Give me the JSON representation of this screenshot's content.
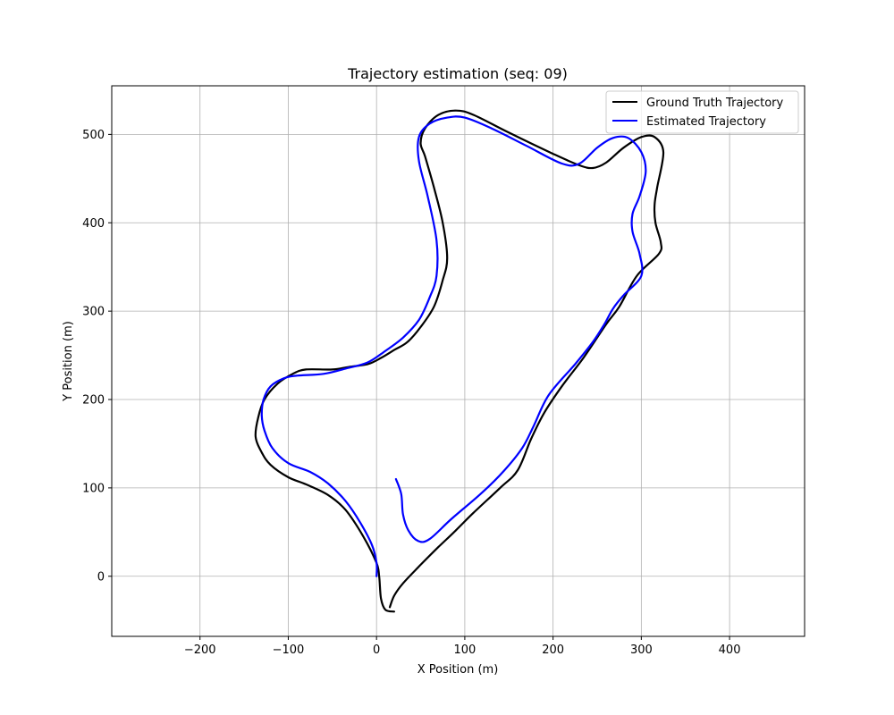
{
  "chart_data": {
    "type": "line",
    "title": "Trajectory estimation (seq: 09)",
    "xlabel": "X Position (m)",
    "ylabel": "Y Position (m)",
    "xlim": [
      -300,
      485
    ],
    "ylim": [
      -68,
      555
    ],
    "xticks": [
      -200,
      -100,
      0,
      100,
      200,
      300,
      400
    ],
    "yticks": [
      0,
      100,
      200,
      300,
      400,
      500
    ],
    "grid": true,
    "legend_position": "top-right",
    "series": [
      {
        "name": "Ground Truth Trajectory",
        "color": "#000000",
        "points": [
          [
            20,
            -40
          ],
          [
            10,
            -38
          ],
          [
            5,
            -25
          ],
          [
            3,
            0
          ],
          [
            0,
            15
          ],
          [
            -15,
            45
          ],
          [
            -35,
            75
          ],
          [
            -55,
            92
          ],
          [
            -80,
            104
          ],
          [
            -100,
            112
          ],
          [
            -120,
            126
          ],
          [
            -130,
            140
          ],
          [
            -137,
            158
          ],
          [
            -134,
            180
          ],
          [
            -127,
            200
          ],
          [
            -112,
            218
          ],
          [
            -95,
            229
          ],
          [
            -80,
            234
          ],
          [
            -50,
            234
          ],
          [
            -30,
            237
          ],
          [
            -10,
            240
          ],
          [
            5,
            247
          ],
          [
            20,
            256
          ],
          [
            35,
            265
          ],
          [
            50,
            282
          ],
          [
            65,
            305
          ],
          [
            75,
            335
          ],
          [
            80,
            360
          ],
          [
            75,
            400
          ],
          [
            65,
            440
          ],
          [
            55,
            475
          ],
          [
            50,
            490
          ],
          [
            55,
            507
          ],
          [
            70,
            522
          ],
          [
            90,
            527
          ],
          [
            110,
            522
          ],
          [
            150,
            502
          ],
          [
            200,
            478
          ],
          [
            230,
            465
          ],
          [
            245,
            462
          ],
          [
            260,
            468
          ],
          [
            280,
            485
          ],
          [
            300,
            497
          ],
          [
            315,
            497
          ],
          [
            325,
            480
          ],
          [
            318,
            440
          ],
          [
            315,
            420
          ],
          [
            316,
            400
          ],
          [
            322,
            378
          ],
          [
            320,
            365
          ],
          [
            295,
            340
          ],
          [
            275,
            305
          ],
          [
            260,
            285
          ],
          [
            235,
            248
          ],
          [
            210,
            215
          ],
          [
            190,
            185
          ],
          [
            175,
            155
          ],
          [
            160,
            120
          ],
          [
            140,
            100
          ],
          [
            110,
            72
          ],
          [
            90,
            52
          ],
          [
            70,
            33
          ],
          [
            50,
            13
          ],
          [
            30,
            -8
          ],
          [
            20,
            -22
          ],
          [
            15,
            -35
          ]
        ]
      },
      {
        "name": "Estimated Trajectory",
        "color": "#0000ff",
        "points": [
          [
            22,
            110
          ],
          [
            28,
            93
          ],
          [
            30,
            70
          ],
          [
            36,
            52
          ],
          [
            47,
            40
          ],
          [
            60,
            42
          ],
          [
            85,
            65
          ],
          [
            120,
            95
          ],
          [
            145,
            120
          ],
          [
            165,
            145
          ],
          [
            178,
            170
          ],
          [
            195,
            205
          ],
          [
            225,
            240
          ],
          [
            245,
            265
          ],
          [
            258,
            285
          ],
          [
            268,
            303
          ],
          [
            280,
            318
          ],
          [
            300,
            340
          ],
          [
            298,
            365
          ],
          [
            290,
            390
          ],
          [
            290,
            410
          ],
          [
            298,
            430
          ],
          [
            305,
            458
          ],
          [
            300,
            480
          ],
          [
            285,
            496
          ],
          [
            268,
            496
          ],
          [
            250,
            485
          ],
          [
            230,
            467
          ],
          [
            210,
            467
          ],
          [
            170,
            487
          ],
          [
            130,
            507
          ],
          [
            100,
            519
          ],
          [
            80,
            519
          ],
          [
            60,
            512
          ],
          [
            48,
            497
          ],
          [
            48,
            470
          ],
          [
            58,
            430
          ],
          [
            68,
            380
          ],
          [
            68,
            340
          ],
          [
            60,
            315
          ],
          [
            48,
            290
          ],
          [
            30,
            270
          ],
          [
            10,
            255
          ],
          [
            -10,
            242
          ],
          [
            -35,
            235
          ],
          [
            -60,
            229
          ],
          [
            -90,
            227
          ],
          [
            -105,
            224
          ],
          [
            -120,
            215
          ],
          [
            -128,
            200
          ],
          [
            -130,
            182
          ],
          [
            -127,
            165
          ],
          [
            -118,
            145
          ],
          [
            -100,
            128
          ],
          [
            -75,
            118
          ],
          [
            -55,
            105
          ],
          [
            -35,
            85
          ],
          [
            -18,
            60
          ],
          [
            -5,
            35
          ],
          [
            0,
            15
          ],
          [
            0,
            0
          ]
        ]
      }
    ]
  }
}
